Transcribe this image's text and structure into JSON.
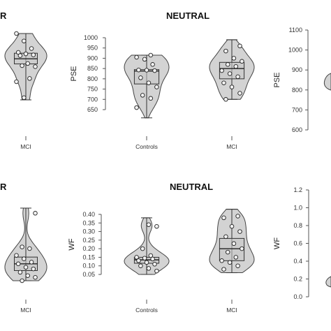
{
  "panels": {
    "top_title_left": "R",
    "top_title_center": "NEUTRAL",
    "bottom_title_left": "R",
    "bottom_title_center": "NEUTRAL"
  },
  "chart_data": [
    {
      "type": "violin",
      "panel": "top-left-partial",
      "title": "R",
      "categories": [
        "MCI"
      ],
      "violins": [
        {
          "category": "MCI",
          "min": 690,
          "max": 1000,
          "q1": 858,
          "median": 882,
          "q3": 908,
          "points": [
            1000,
            965,
            930,
            912,
            905,
            900,
            897,
            860,
            845,
            850,
            790,
            775,
            700
          ]
        }
      ]
    },
    {
      "type": "violin",
      "panel": "top-center",
      "title": "NEUTRAL",
      "ylabel": "PSE",
      "ylim": [
        650,
        1000
      ],
      "yticks": [
        "1000",
        "950",
        "900",
        "850",
        "800",
        "750",
        "700",
        "650"
      ],
      "categories": [
        "Controls",
        "MCI"
      ],
      "violins": [
        {
          "category": "Controls",
          "min": 610,
          "max": 915,
          "q1": 775,
          "median": 838,
          "q3": 845,
          "points": [
            915,
            905,
            895,
            870,
            843,
            842,
            840,
            805,
            780,
            760,
            720,
            705,
            660
          ]
        },
        {
          "category": "MCI",
          "min": 700,
          "max": 990,
          "q1": 800,
          "median": 850,
          "q3": 880,
          "points": [
            960,
            935,
            900,
            885,
            870,
            860,
            840,
            825,
            810,
            780,
            760,
            730,
            700
          ]
        }
      ]
    },
    {
      "type": "violin",
      "panel": "top-right-partial",
      "ylabel": "PSE",
      "ylim": [
        600,
        1100
      ],
      "yticks": [
        "1100",
        "1000",
        "900",
        "800",
        "700",
        "600"
      ],
      "categories": [],
      "violins": []
    },
    {
      "type": "violin",
      "panel": "bottom-left-partial",
      "title": "R",
      "categories": [
        "MCI"
      ],
      "violins": [
        {
          "category": "MCI",
          "min": 0.02,
          "max": 0.45,
          "q1": 0.08,
          "median": 0.12,
          "q3": 0.16,
          "points": [
            0.42,
            0.22,
            0.21,
            0.17,
            0.15,
            0.13,
            0.12,
            0.1,
            0.09,
            0.07,
            0.05,
            0.04,
            0.02
          ]
        }
      ]
    },
    {
      "type": "violin",
      "panel": "bottom-center",
      "title": "NEUTRAL",
      "ylabel": "WF",
      "ylim": [
        0.05,
        0.4
      ],
      "yticks": [
        "0.40",
        "0.35",
        "0.30",
        "0.25",
        "0.20",
        "0.15",
        "0.10",
        "0.05"
      ],
      "categories": [
        "Controls",
        "MCI"
      ],
      "violins": [
        {
          "category": "Controls",
          "min": 0.05,
          "max": 0.38,
          "q1": 0.115,
          "median": 0.135,
          "q3": 0.15,
          "points": [
            0.34,
            0.33,
            0.2,
            0.16,
            0.15,
            0.145,
            0.14,
            0.13,
            0.12,
            0.11,
            0.1,
            0.085,
            0.07
          ]
        },
        {
          "category": "MCI",
          "min": 0.06,
          "max": 0.43,
          "q1": 0.13,
          "median": 0.2,
          "q3": 0.26,
          "points": [
            0.39,
            0.38,
            0.33,
            0.3,
            0.27,
            0.23,
            0.2,
            0.18,
            0.15,
            0.13,
            0.12,
            0.1,
            0.08
          ]
        }
      ]
    },
    {
      "type": "violin",
      "panel": "bottom-right-partial",
      "ylabel": "WF",
      "ylim": [
        0,
        1.2
      ],
      "yticks": [
        "1.2",
        "1.0",
        "0.8",
        "0.6",
        "0.4",
        "0.2",
        "0.0"
      ],
      "categories": [],
      "violins": []
    }
  ]
}
